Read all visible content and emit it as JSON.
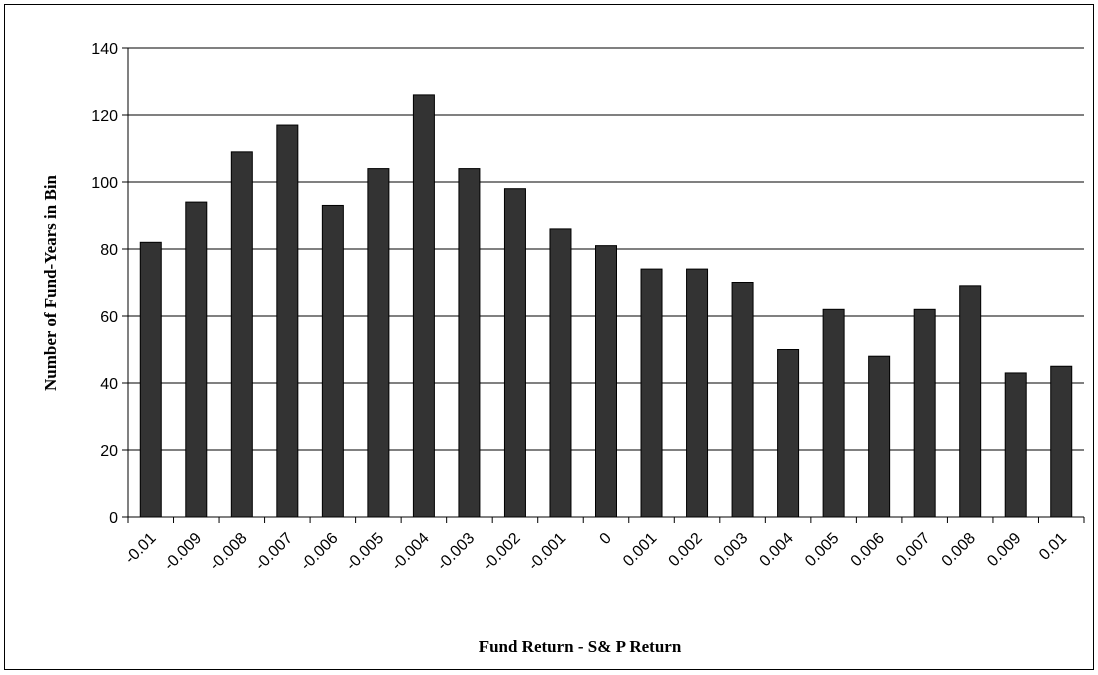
{
  "chart_data": {
    "type": "bar",
    "title": "",
    "xlabel": "Fund Return - S& P Return",
    "ylabel": "Number of Fund-Years in Bin",
    "categories": [
      "-0.01",
      "-0.009",
      "-0.008",
      "-0.007",
      "-0.006",
      "-0.005",
      "-0.004",
      "-0.003",
      "-0.002",
      "-0.001",
      "0",
      "0.001",
      "0.002",
      "0.003",
      "0.004",
      "0.005",
      "0.006",
      "0.007",
      "0.008",
      "0.009",
      "0.01"
    ],
    "values": [
      82,
      94,
      109,
      117,
      93,
      104,
      126,
      104,
      98,
      86,
      81,
      74,
      74,
      70,
      50,
      62,
      48,
      62,
      69,
      43,
      45
    ],
    "ylim": [
      0,
      140
    ],
    "yticks": [
      0,
      20,
      40,
      60,
      80,
      100,
      120,
      140
    ],
    "grid": true,
    "legend": "none",
    "colors": {
      "bar": "#333333",
      "bar_edge": "#000000",
      "grid": "#000000",
      "axis": "#000000"
    }
  }
}
